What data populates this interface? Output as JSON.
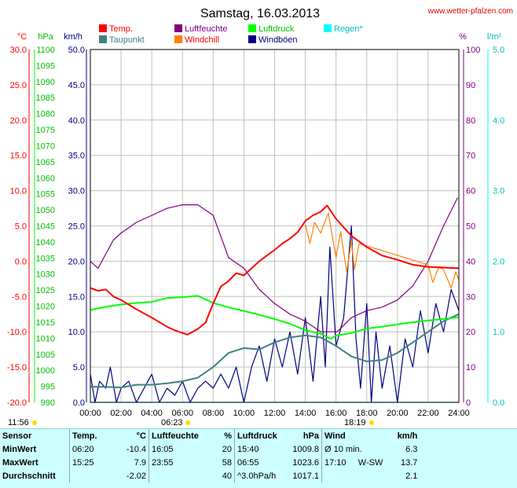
{
  "header": {
    "title": "Samstag, 16.03.2013",
    "site": "www.wetter-pfalzen.com"
  },
  "legend": [
    {
      "label": "Temp.",
      "color": "#ff0000",
      "text_color": "#ff0000"
    },
    {
      "label": "Luftfeuchte",
      "color": "#800080",
      "text_color": "#800080"
    },
    {
      "label": "Luftdruck",
      "color": "#00ff00",
      "text_color": "#00c000"
    },
    {
      "label": "Regen*",
      "color": "#00ffff",
      "text_color": "#00c0c0"
    },
    {
      "label": "Taupunkt",
      "color": "#408080",
      "text_color": "#408080"
    },
    {
      "label": "Windchill",
      "color": "#ff8000",
      "text_color": "#ff0000"
    },
    {
      "label": "Windböen",
      "color": "#000080",
      "text_color": "#000080"
    }
  ],
  "unit_labels": {
    "temp": "°C",
    "pressure": "hPa",
    "wind": "km/h",
    "humidity": "%",
    "rain": "l/m²"
  },
  "sun": {
    "sunrise_label": "06:23",
    "sunset_label": "18:19",
    "sunshine_label": "11:56"
  },
  "chart_data": {
    "type": "line",
    "x_ticks": [
      "00:00",
      "02:00",
      "04:00",
      "06:00",
      "08:00",
      "10:00",
      "12:00",
      "14:00",
      "16:00",
      "18:00",
      "20:00",
      "22:00",
      "24:00"
    ],
    "axes": {
      "temp_ticks": [
        "30.0",
        "25.0",
        "20.0",
        "15.0",
        "10.0",
        "5.0",
        "0.0",
        "-5.0",
        "-10.0",
        "-15.0",
        "-20.0"
      ],
      "temp_range": [
        -20,
        30
      ],
      "pressure_ticks": [
        "1100",
        "1095",
        "1090",
        "1085",
        "1080",
        "1075",
        "1070",
        "1065",
        "1060",
        "1055",
        "1050",
        "1045",
        "1040",
        "1035",
        "1030",
        "1025",
        "1020",
        "1015",
        "1010",
        "1005",
        "1000",
        "995",
        "990"
      ],
      "pressure_range": [
        990,
        1100
      ],
      "wind_ticks": [
        "50.0",
        "45.0",
        "40.0",
        "35.0",
        "30.0",
        "25.0",
        "20.0",
        "15.0",
        "10.0",
        "5.0",
        "0.0"
      ],
      "wind_range": [
        0,
        50
      ],
      "humidity_ticks": [
        "100",
        "90",
        "80",
        "70",
        "60",
        "50",
        "40",
        "30",
        "20",
        "10",
        "0"
      ],
      "humidity_range": [
        0,
        100
      ],
      "rain_ticks": [
        "5.0",
        "4.0",
        "3.0",
        "2.0",
        "1.0",
        "0.0"
      ],
      "rain_range": [
        0,
        5
      ]
    },
    "series": [
      {
        "name": "Temp.",
        "unit": "°C",
        "color": "#ff0000",
        "points": [
          [
            0,
            -3.8
          ],
          [
            0.5,
            -4.2
          ],
          [
            1,
            -4.0
          ],
          [
            1.5,
            -5.0
          ],
          [
            2,
            -5.5
          ],
          [
            3,
            -6.8
          ],
          [
            4,
            -8.0
          ],
          [
            5,
            -9.3
          ],
          [
            5.5,
            -9.8
          ],
          [
            6.33,
            -10.4
          ],
          [
            7,
            -9.6
          ],
          [
            7.5,
            -8.7
          ],
          [
            8,
            -6.0
          ],
          [
            8.5,
            -3.6
          ],
          [
            9,
            -2.8
          ],
          [
            9.5,
            -1.7
          ],
          [
            10,
            -2.0
          ],
          [
            10.5,
            -1.0
          ],
          [
            11,
            0.0
          ],
          [
            11.5,
            0.8
          ],
          [
            12,
            1.6
          ],
          [
            12.5,
            2.5
          ],
          [
            13,
            3.2
          ],
          [
            13.5,
            4.1
          ],
          [
            14,
            5.7
          ],
          [
            14.5,
            6.5
          ],
          [
            15,
            7.0
          ],
          [
            15.42,
            7.9
          ],
          [
            16,
            6.0
          ],
          [
            17,
            3.6
          ],
          [
            18,
            2.0
          ],
          [
            19,
            0.8
          ],
          [
            20,
            0.2
          ],
          [
            21,
            -0.5
          ],
          [
            22,
            -0.8
          ],
          [
            23,
            -0.9
          ],
          [
            24,
            -1.0
          ]
        ]
      },
      {
        "name": "Luftfeuchte",
        "unit": "%",
        "color": "#800080",
        "points": [
          [
            0,
            40
          ],
          [
            0.5,
            38
          ],
          [
            1,
            42
          ],
          [
            1.5,
            46
          ],
          [
            2,
            48
          ],
          [
            3,
            51
          ],
          [
            4,
            53
          ],
          [
            5,
            55
          ],
          [
            6,
            56
          ],
          [
            7,
            56
          ],
          [
            8,
            53
          ],
          [
            9,
            41
          ],
          [
            10,
            38
          ],
          [
            11,
            32
          ],
          [
            12,
            28
          ],
          [
            13,
            25
          ],
          [
            14,
            23
          ],
          [
            15,
            20
          ],
          [
            16.08,
            20
          ],
          [
            17,
            24
          ],
          [
            18,
            26
          ],
          [
            19,
            27
          ],
          [
            20,
            29
          ],
          [
            21,
            33
          ],
          [
            22,
            40
          ],
          [
            23,
            50
          ],
          [
            23.92,
            58
          ]
        ]
      },
      {
        "name": "Luftdruck",
        "unit": "hPa",
        "color": "#00ff00",
        "points": [
          [
            0,
            1018.8
          ],
          [
            1,
            1019.8
          ],
          [
            2,
            1020.5
          ],
          [
            3,
            1021.0
          ],
          [
            4,
            1021.3
          ],
          [
            5,
            1022.5
          ],
          [
            6,
            1022.8
          ],
          [
            7,
            1023.2
          ],
          [
            8,
            1021.0
          ],
          [
            9,
            1019.6
          ],
          [
            10,
            1018.5
          ],
          [
            11,
            1017.3
          ],
          [
            12,
            1016.0
          ],
          [
            13,
            1014.5
          ],
          [
            14,
            1012.5
          ],
          [
            15,
            1011.4
          ],
          [
            15.67,
            1009.8
          ],
          [
            16,
            1010.8
          ],
          [
            17,
            1011.6
          ],
          [
            18,
            1013.0
          ],
          [
            19,
            1013.6
          ],
          [
            20,
            1014.3
          ],
          [
            21,
            1015.0
          ],
          [
            22,
            1015.5
          ],
          [
            23,
            1016.0
          ],
          [
            24,
            1016.5
          ]
        ]
      },
      {
        "name": "Taupunkt",
        "unit": "°C",
        "color": "#408080",
        "points": [
          [
            0,
            -17.8
          ],
          [
            1,
            -17.8
          ],
          [
            2,
            -17.9
          ],
          [
            3,
            -17.5
          ],
          [
            4,
            -17.5
          ],
          [
            5,
            -17.3
          ],
          [
            6,
            -17.0
          ],
          [
            7,
            -16.5
          ],
          [
            8,
            -15.0
          ],
          [
            9,
            -13.0
          ],
          [
            10,
            -12.3
          ],
          [
            11,
            -12.5
          ],
          [
            12,
            -11.5
          ],
          [
            13,
            -10.8
          ],
          [
            14,
            -10.5
          ],
          [
            15,
            -10.8
          ],
          [
            16,
            -12.0
          ],
          [
            17,
            -13.5
          ],
          [
            18,
            -14.2
          ],
          [
            19,
            -14.0
          ],
          [
            20,
            -13.0
          ],
          [
            21,
            -11.5
          ],
          [
            22,
            -10.0
          ],
          [
            23,
            -8.5
          ],
          [
            24,
            -7.5
          ]
        ]
      },
      {
        "name": "Windchill",
        "unit": "°C",
        "color": "#ff8000",
        "points": [
          [
            14,
            5.2
          ],
          [
            14.3,
            2.5
          ],
          [
            14.6,
            5.5
          ],
          [
            15,
            4.0
          ],
          [
            15.5,
            6.8
          ],
          [
            16,
            0.5
          ],
          [
            16.3,
            4.2
          ],
          [
            16.7,
            -1.5
          ],
          [
            17,
            2.8
          ],
          [
            17.2,
            -1.2
          ],
          [
            17.5,
            2.5
          ],
          [
            22,
            -0.5
          ],
          [
            22.3,
            -3.0
          ],
          [
            22.7,
            -0.8
          ],
          [
            23,
            -1.2
          ],
          [
            23.5,
            -3.8
          ],
          [
            23.8,
            -1.5
          ],
          [
            24,
            -2.7
          ]
        ]
      },
      {
        "name": "Windböen",
        "unit": "km/h",
        "color": "#000080",
        "points": [
          [
            0,
            4
          ],
          [
            0.3,
            0
          ],
          [
            0.6,
            3
          ],
          [
            1,
            2
          ],
          [
            1.3,
            5
          ],
          [
            1.7,
            0
          ],
          [
            2,
            2
          ],
          [
            2.5,
            3
          ],
          [
            3,
            0
          ],
          [
            3.5,
            2
          ],
          [
            4,
            4
          ],
          [
            4.5,
            0
          ],
          [
            5,
            2
          ],
          [
            5.5,
            1
          ],
          [
            6,
            3
          ],
          [
            6.5,
            0
          ],
          [
            7,
            2
          ],
          [
            7.5,
            3
          ],
          [
            8,
            2
          ],
          [
            8.5,
            4
          ],
          [
            9,
            2
          ],
          [
            9.5,
            5
          ],
          [
            10,
            0
          ],
          [
            10.5,
            5
          ],
          [
            11,
            8
          ],
          [
            11.5,
            3
          ],
          [
            12,
            9
          ],
          [
            12.5,
            5
          ],
          [
            13,
            10
          ],
          [
            13.5,
            4
          ],
          [
            14,
            12
          ],
          [
            14.5,
            3
          ],
          [
            15,
            15
          ],
          [
            15.3,
            5
          ],
          [
            15.6,
            22
          ],
          [
            16,
            8
          ],
          [
            16.5,
            12
          ],
          [
            17,
            25
          ],
          [
            17.3,
            9
          ],
          [
            17.6,
            2
          ],
          [
            18,
            14
          ],
          [
            18.3,
            0
          ],
          [
            18.6,
            10
          ],
          [
            19,
            2
          ],
          [
            19.5,
            8
          ],
          [
            20,
            0
          ],
          [
            20.5,
            9
          ],
          [
            21,
            5
          ],
          [
            21.5,
            13
          ],
          [
            22,
            7
          ],
          [
            22.5,
            14
          ],
          [
            23,
            10
          ],
          [
            23.5,
            16
          ],
          [
            24,
            13
          ]
        ]
      },
      {
        "name": "Regen*",
        "unit": "l/m²",
        "color": "#00ffff",
        "points": [
          [
            0,
            0
          ],
          [
            24,
            0
          ]
        ]
      }
    ]
  },
  "stats": {
    "headers": [
      "Sensor",
      "Temp.",
      "°C",
      "Luftfeuchte",
      "%",
      "Luftdruck",
      "hPa",
      "Wind",
      "km/h"
    ],
    "rows": [
      {
        "label": "MinWert",
        "temp_time": "06:20",
        "temp_val": "-10.4",
        "hum_time": "16:05",
        "hum_val": "20",
        "press_time": "15:40",
        "press_val": "1009.8",
        "wind_time": "Ø 10 min.",
        "wind_val": "6.3"
      },
      {
        "label": "MaxWert",
        "temp_time": "15:25",
        "temp_val": "7.9",
        "hum_time": "23:55",
        "hum_val": "58",
        "press_time": "06:55",
        "press_val": "1023.6",
        "wind_time": "17:10     W-SW",
        "wind_val": "13.7"
      },
      {
        "label": "Durchschnitt",
        "temp_time": "",
        "temp_val": "-2.02",
        "hum_time": "",
        "hum_val": "40",
        "press_time": "^3.0hPa/h",
        "press_val": "1017.1",
        "wind_time": "",
        "wind_val": "2.1"
      }
    ]
  }
}
